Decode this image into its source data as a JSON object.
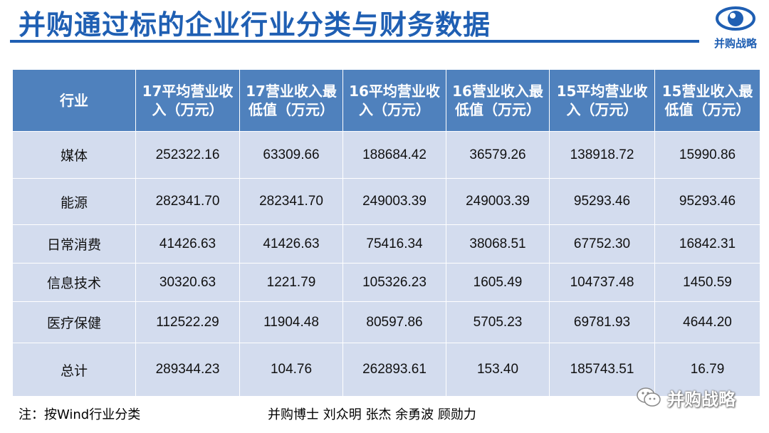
{
  "title": "并购通过标的企业行业分类与财务数据",
  "logo": {
    "text": "并购战略",
    "icon": "eye-icon",
    "color": "#1f5fb3"
  },
  "colors": {
    "header_bg": "#4f81bd",
    "row_bg": "#d3dcee",
    "title": "#1f5fb3"
  },
  "table": {
    "headers": [
      "行业",
      "17平均营业收入（万元）",
      "17营业收入最低值（万元）",
      "16平均营业收入（万元）",
      "16营业收入最低值（万元）",
      "15平均营业收入（万元）",
      "15营业收入最低值（万元）"
    ],
    "rows": [
      [
        "媒体",
        "252322.16",
        "63309.66",
        "188684.42",
        "36579.26",
        "138918.72",
        "15990.86"
      ],
      [
        "能源",
        "282341.70",
        "282341.70",
        "249003.39",
        "249003.39",
        "95293.46",
        "95293.46"
      ],
      [
        "日常消费",
        "41426.63",
        "41426.63",
        "75416.34",
        "38068.51",
        "67752.30",
        "16842.31"
      ],
      [
        "信息技术",
        "30320.63",
        "1221.79",
        "105326.23",
        "1605.49",
        "104737.48",
        "1450.59"
      ],
      [
        "医疗保健",
        "112522.29",
        "11904.48",
        "80597.86",
        "5705.23",
        "69781.93",
        "4644.20"
      ],
      [
        "总计",
        "289344.23",
        "104.76",
        "262893.61",
        "153.40",
        "185743.51",
        "16.79"
      ]
    ]
  },
  "footer": {
    "note": "注：按Wind行业分类",
    "authors": "并购博士 刘众明 张杰 余勇波 顾勋力"
  },
  "watermark": {
    "text": "并购战略",
    "icon": "wechat-icon"
  }
}
